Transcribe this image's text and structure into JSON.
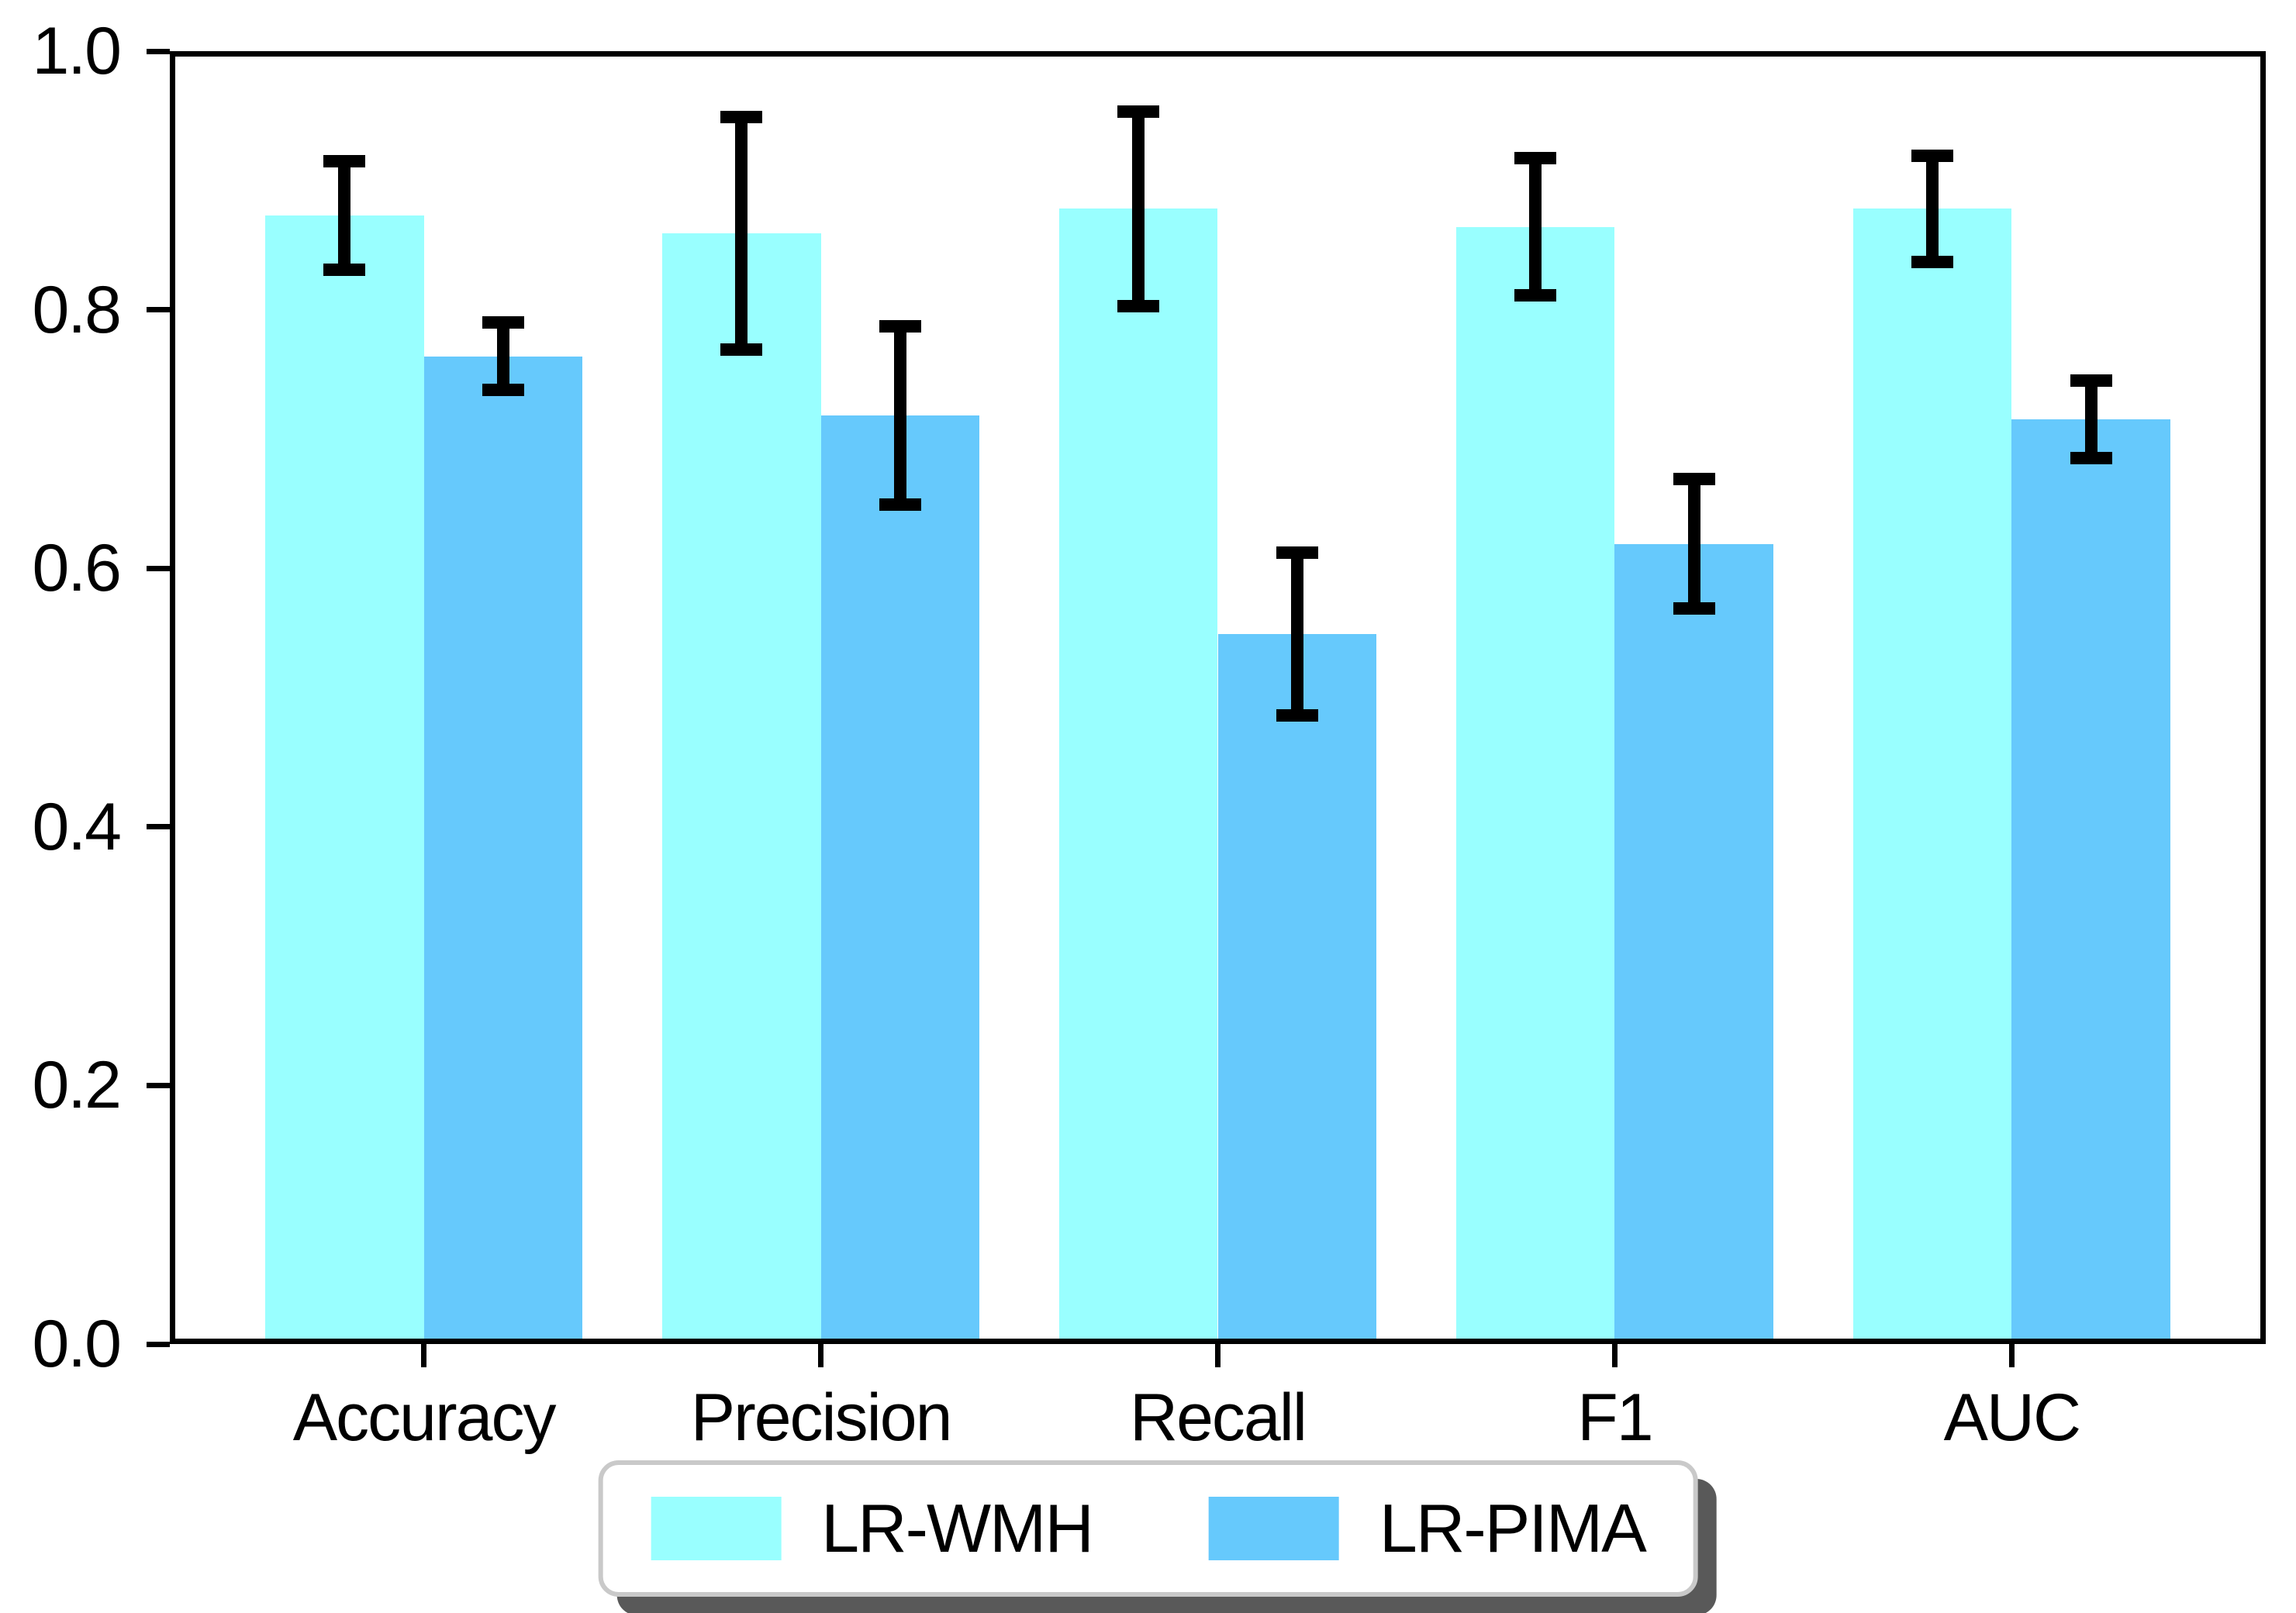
{
  "chart_data": {
    "type": "bar",
    "title": "",
    "xlabel": "",
    "ylabel": "",
    "categories": [
      "Accuracy",
      "Precision",
      "Recall",
      "F1",
      "AUC"
    ],
    "series": [
      {
        "name": "LR-WMH",
        "color": "#99FFFF",
        "values": [
          0.873,
          0.859,
          0.878,
          0.864,
          0.878
        ],
        "errors": [
          0.042,
          0.09,
          0.075,
          0.053,
          0.041
        ]
      },
      {
        "name": "LR-PIMA",
        "color": "#66C9FC",
        "values": [
          0.764,
          0.718,
          0.549,
          0.619,
          0.715
        ],
        "errors": [
          0.026,
          0.069,
          0.063,
          0.05,
          0.03
        ]
      }
    ],
    "ylim": [
      0.0,
      1.0
    ],
    "ytick_labels": [
      "0.0",
      "0.2",
      "0.4",
      "0.6",
      "0.8",
      "1.0"
    ],
    "grid": false,
    "error_bar_color": "#000000",
    "legend_position": "bottom-center"
  }
}
